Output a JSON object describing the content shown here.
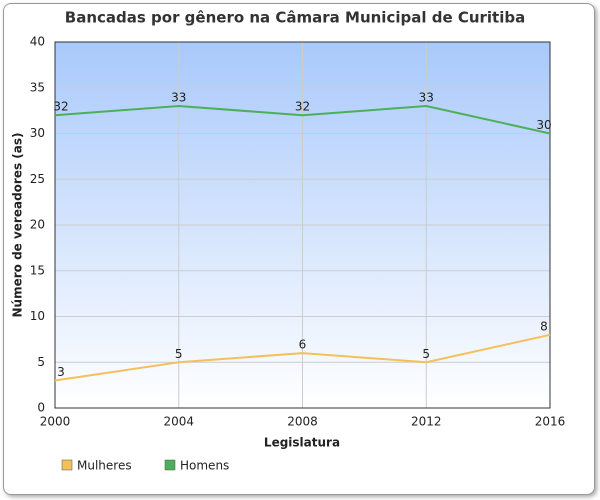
{
  "chart_data": {
    "type": "line",
    "title": "Bancadas por gênero na Câmara Municipal de Curitiba",
    "x_label": "Legislatura",
    "y_label": "Número de vereadores (as)",
    "x": [
      2000,
      2004,
      2008,
      2012,
      2016
    ],
    "series": [
      {
        "name": "Mulheres",
        "color": "#f5bf5a",
        "values": [
          3,
          5,
          6,
          5,
          8
        ]
      },
      {
        "name": "Homens",
        "color": "#4caf5a",
        "values": [
          32,
          33,
          32,
          33,
          30
        ]
      }
    ],
    "xlim": [
      2000,
      2016
    ],
    "xticks": [
      2000,
      2004,
      2008,
      2012,
      2016
    ],
    "ylim": [
      0,
      40
    ],
    "yticks": [
      0,
      5,
      10,
      15,
      20,
      25,
      30,
      35,
      40
    ],
    "grid": true,
    "legend": "bottom-left"
  }
}
